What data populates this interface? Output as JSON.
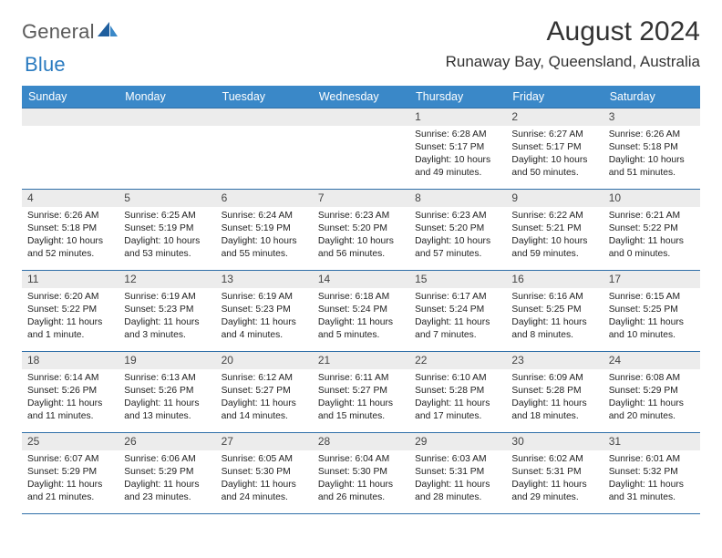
{
  "logo": {
    "text1": "General",
    "text2": "Blue"
  },
  "title": "August 2024",
  "location": "Runaway Bay, Queensland, Australia",
  "colors": {
    "header_bg": "#3a88c8",
    "row_border": "#2f6fa8",
    "daynum_bg": "#ececec",
    "logo_gray": "#5a5a5a",
    "logo_blue": "#2a7bc0"
  },
  "daynames": [
    "Sunday",
    "Monday",
    "Tuesday",
    "Wednesday",
    "Thursday",
    "Friday",
    "Saturday"
  ],
  "weeks": [
    [
      {
        "n": "",
        "lines": []
      },
      {
        "n": "",
        "lines": []
      },
      {
        "n": "",
        "lines": []
      },
      {
        "n": "",
        "lines": []
      },
      {
        "n": "1",
        "lines": [
          "Sunrise: 6:28 AM",
          "Sunset: 5:17 PM",
          "Daylight: 10 hours and 49 minutes."
        ]
      },
      {
        "n": "2",
        "lines": [
          "Sunrise: 6:27 AM",
          "Sunset: 5:17 PM",
          "Daylight: 10 hours and 50 minutes."
        ]
      },
      {
        "n": "3",
        "lines": [
          "Sunrise: 6:26 AM",
          "Sunset: 5:18 PM",
          "Daylight: 10 hours and 51 minutes."
        ]
      }
    ],
    [
      {
        "n": "4",
        "lines": [
          "Sunrise: 6:26 AM",
          "Sunset: 5:18 PM",
          "Daylight: 10 hours and 52 minutes."
        ]
      },
      {
        "n": "5",
        "lines": [
          "Sunrise: 6:25 AM",
          "Sunset: 5:19 PM",
          "Daylight: 10 hours and 53 minutes."
        ]
      },
      {
        "n": "6",
        "lines": [
          "Sunrise: 6:24 AM",
          "Sunset: 5:19 PM",
          "Daylight: 10 hours and 55 minutes."
        ]
      },
      {
        "n": "7",
        "lines": [
          "Sunrise: 6:23 AM",
          "Sunset: 5:20 PM",
          "Daylight: 10 hours and 56 minutes."
        ]
      },
      {
        "n": "8",
        "lines": [
          "Sunrise: 6:23 AM",
          "Sunset: 5:20 PM",
          "Daylight: 10 hours and 57 minutes."
        ]
      },
      {
        "n": "9",
        "lines": [
          "Sunrise: 6:22 AM",
          "Sunset: 5:21 PM",
          "Daylight: 10 hours and 59 minutes."
        ]
      },
      {
        "n": "10",
        "lines": [
          "Sunrise: 6:21 AM",
          "Sunset: 5:22 PM",
          "Daylight: 11 hours and 0 minutes."
        ]
      }
    ],
    [
      {
        "n": "11",
        "lines": [
          "Sunrise: 6:20 AM",
          "Sunset: 5:22 PM",
          "Daylight: 11 hours and 1 minute."
        ]
      },
      {
        "n": "12",
        "lines": [
          "Sunrise: 6:19 AM",
          "Sunset: 5:23 PM",
          "Daylight: 11 hours and 3 minutes."
        ]
      },
      {
        "n": "13",
        "lines": [
          "Sunrise: 6:19 AM",
          "Sunset: 5:23 PM",
          "Daylight: 11 hours and 4 minutes."
        ]
      },
      {
        "n": "14",
        "lines": [
          "Sunrise: 6:18 AM",
          "Sunset: 5:24 PM",
          "Daylight: 11 hours and 5 minutes."
        ]
      },
      {
        "n": "15",
        "lines": [
          "Sunrise: 6:17 AM",
          "Sunset: 5:24 PM",
          "Daylight: 11 hours and 7 minutes."
        ]
      },
      {
        "n": "16",
        "lines": [
          "Sunrise: 6:16 AM",
          "Sunset: 5:25 PM",
          "Daylight: 11 hours and 8 minutes."
        ]
      },
      {
        "n": "17",
        "lines": [
          "Sunrise: 6:15 AM",
          "Sunset: 5:25 PM",
          "Daylight: 11 hours and 10 minutes."
        ]
      }
    ],
    [
      {
        "n": "18",
        "lines": [
          "Sunrise: 6:14 AM",
          "Sunset: 5:26 PM",
          "Daylight: 11 hours and 11 minutes."
        ]
      },
      {
        "n": "19",
        "lines": [
          "Sunrise: 6:13 AM",
          "Sunset: 5:26 PM",
          "Daylight: 11 hours and 13 minutes."
        ]
      },
      {
        "n": "20",
        "lines": [
          "Sunrise: 6:12 AM",
          "Sunset: 5:27 PM",
          "Daylight: 11 hours and 14 minutes."
        ]
      },
      {
        "n": "21",
        "lines": [
          "Sunrise: 6:11 AM",
          "Sunset: 5:27 PM",
          "Daylight: 11 hours and 15 minutes."
        ]
      },
      {
        "n": "22",
        "lines": [
          "Sunrise: 6:10 AM",
          "Sunset: 5:28 PM",
          "Daylight: 11 hours and 17 minutes."
        ]
      },
      {
        "n": "23",
        "lines": [
          "Sunrise: 6:09 AM",
          "Sunset: 5:28 PM",
          "Daylight: 11 hours and 18 minutes."
        ]
      },
      {
        "n": "24",
        "lines": [
          "Sunrise: 6:08 AM",
          "Sunset: 5:29 PM",
          "Daylight: 11 hours and 20 minutes."
        ]
      }
    ],
    [
      {
        "n": "25",
        "lines": [
          "Sunrise: 6:07 AM",
          "Sunset: 5:29 PM",
          "Daylight: 11 hours and 21 minutes."
        ]
      },
      {
        "n": "26",
        "lines": [
          "Sunrise: 6:06 AM",
          "Sunset: 5:29 PM",
          "Daylight: 11 hours and 23 minutes."
        ]
      },
      {
        "n": "27",
        "lines": [
          "Sunrise: 6:05 AM",
          "Sunset: 5:30 PM",
          "Daylight: 11 hours and 24 minutes."
        ]
      },
      {
        "n": "28",
        "lines": [
          "Sunrise: 6:04 AM",
          "Sunset: 5:30 PM",
          "Daylight: 11 hours and 26 minutes."
        ]
      },
      {
        "n": "29",
        "lines": [
          "Sunrise: 6:03 AM",
          "Sunset: 5:31 PM",
          "Daylight: 11 hours and 28 minutes."
        ]
      },
      {
        "n": "30",
        "lines": [
          "Sunrise: 6:02 AM",
          "Sunset: 5:31 PM",
          "Daylight: 11 hours and 29 minutes."
        ]
      },
      {
        "n": "31",
        "lines": [
          "Sunrise: 6:01 AM",
          "Sunset: 5:32 PM",
          "Daylight: 11 hours and 31 minutes."
        ]
      }
    ]
  ]
}
